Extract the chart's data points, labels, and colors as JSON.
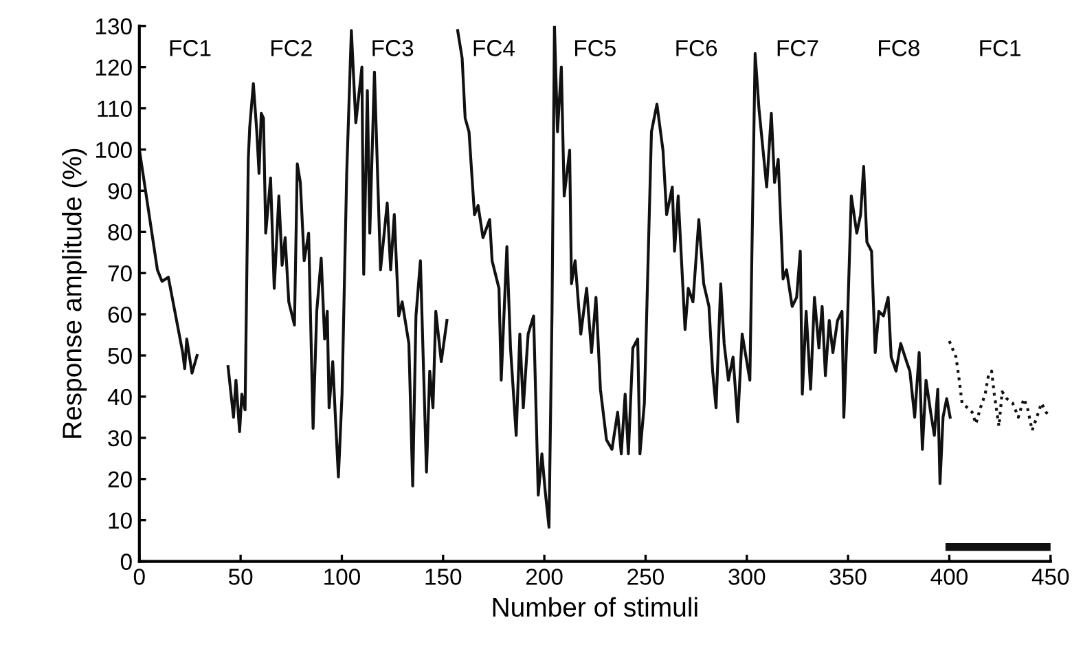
{
  "chart_data": {
    "type": "line",
    "xlabel": "Number of stimuli",
    "ylabel": "Response amplitude (%)",
    "xlim": [
      0,
      450
    ],
    "ylim": [
      0,
      130
    ],
    "xticks": [
      0,
      50,
      100,
      150,
      200,
      250,
      300,
      350,
      400,
      450
    ],
    "yticks": [
      0,
      10,
      20,
      30,
      40,
      50,
      60,
      70,
      80,
      90,
      100,
      110,
      120,
      130
    ],
    "grid": false,
    "legend": false,
    "marker": "none",
    "series": [
      {
        "color": "#111111",
        "line_style": "solid",
        "x": [
          0,
          8.9,
          11.2,
          14.3,
          21.4,
          22.4,
          23.4,
          26,
          28.5
        ],
        "values": [
          100,
          70.8,
          68,
          69,
          50.7,
          46.8,
          54,
          45.7,
          50
        ]
      },
      {
        "color": "#111111",
        "line_style": "solid",
        "x": [
          43.8,
          46.5,
          47.7,
          49.5,
          50.6,
          52.2,
          53.8,
          54.5,
          56.3,
          58,
          59.1,
          60.2,
          61.3,
          62.4,
          64.8,
          66.6,
          68.9,
          70.5,
          72,
          73.8,
          76.6,
          78,
          79.5,
          81.4,
          83.6,
          85.8,
          87.6,
          89.8,
          91.5,
          92.8,
          93.7,
          95.5,
          96.7,
          98.3,
          100.1,
          102.4,
          104.7,
          106.9,
          109.9,
          110.8,
          112.6,
          113.8,
          116.1,
          119.1,
          122.4,
          124.1,
          125.9,
          128.1,
          129.8,
          133.1,
          135,
          136.6,
          138.8,
          141.8,
          143.4,
          145,
          146.4,
          149.1,
          151.9
        ],
        "values": [
          47.3,
          35,
          44,
          31.5,
          40.6,
          36.8,
          97.6,
          105.4,
          116,
          104.3,
          94.2,
          108.8,
          107.6,
          79.7,
          93.1,
          66.3,
          88.7,
          71.9,
          78.6,
          63,
          57.4,
          96.5,
          92,
          73,
          79.7,
          32.3,
          60.7,
          73.6,
          54,
          60.7,
          37.3,
          48.5,
          36.2,
          20.5,
          40.6,
          94.2,
          128.9,
          106.5,
          120,
          69.7,
          114.3,
          79.7,
          118.8,
          70.8,
          87,
          70.8,
          84.2,
          59.6,
          63,
          52.9,
          18.3,
          59.6,
          73,
          21.7,
          46.2,
          37.3,
          60.7,
          48.5,
          58.5
        ]
      },
      {
        "color": "#111111",
        "line_style": "solid",
        "x": [
          157.2,
          159.4,
          160.9,
          162.8,
          165.5,
          167.3,
          169.7,
          173,
          174.2,
          177.6,
          178.7,
          181.5,
          183.3,
          186.1,
          187.9,
          189.6,
          192,
          194.7,
          197,
          198.8,
          200.4,
          202.3,
          203.8,
          205,
          206.5,
          208.4,
          209.8,
          212.5,
          213.4,
          215.2,
          218,
          220.9,
          223.3,
          225.5,
          227.7,
          230.7,
          233.4,
          236.2,
          238,
          239.9,
          241.5,
          243.7,
          246.1,
          247.2,
          249.4,
          252.9,
          255.6,
          258.6,
          260.4,
          263.2,
          264.3,
          266.1,
          269.5,
          271.1,
          273.4,
          276.3,
          278.7,
          281.3,
          283.1,
          284.8,
          287.1,
          288.8,
          290.9,
          293.2,
          295.5,
          297.7,
          301.5,
          304.1,
          306,
          309.8,
          312.1,
          313.7,
          315.5,
          317.9,
          319.6,
          322.4,
          324.6,
          326.4,
          327.4,
          329.3,
          331.5,
          333.4,
          335.6,
          337.2,
          338.8,
          340.7,
          342.5,
          344.8,
          347,
          347.9,
          349.8,
          351.6,
          354.3,
          356.2,
          357.7,
          359.3,
          361.6,
          363.4,
          365.2,
          367.5,
          369.8,
          371.3,
          373.7,
          376,
          378.9,
          380.5,
          382.9,
          385.1,
          386.7,
          388.5,
          390.8,
          392.6,
          394.3,
          395.4,
          396.9,
          398.7,
          400.4
        ],
        "values": [
          128.9,
          122.2,
          107.6,
          104.3,
          84.2,
          86.4,
          78.6,
          83,
          73,
          66.3,
          44,
          76.4,
          51.8,
          30.6,
          55.2,
          37.3,
          55.2,
          59.6,
          16.1,
          26.1,
          17.2,
          8.3,
          60.7,
          130,
          104.3,
          120,
          88.7,
          99.8,
          67.4,
          73,
          55.2,
          66.3,
          50.7,
          64.1,
          41.8,
          29.5,
          27.2,
          36.2,
          26.1,
          40.6,
          26.1,
          51.8,
          54,
          26.1,
          38.4,
          104.3,
          111,
          99.8,
          84.2,
          90.9,
          75.3,
          88.7,
          56.3,
          66.3,
          63,
          83,
          67.4,
          61.9,
          46.2,
          37.3,
          67.4,
          52.9,
          44,
          49.6,
          33.9,
          55.2,
          44,
          123.3,
          109.9,
          90.9,
          108.8,
          92,
          97.6,
          68.6,
          70.8,
          61.9,
          64.1,
          75.3,
          40.6,
          60.7,
          41.8,
          64.1,
          51.8,
          61.9,
          45.1,
          58.5,
          50.7,
          58.5,
          60.7,
          35,
          59.6,
          88.7,
          79.7,
          84.2,
          95.9,
          77.5,
          75.3,
          50.7,
          60.7,
          59.6,
          64.1,
          49.6,
          46.2,
          52.9,
          48.5,
          46.2,
          35,
          50.7,
          27.2,
          44,
          36.2,
          30.6,
          41.8,
          18.9,
          35,
          39.5,
          35
        ]
      },
      {
        "color": "#111111",
        "line_style": "dotted",
        "x": [
          400,
          403.3,
          404.9,
          406.3,
          409,
          411.3,
          413.1,
          415.4,
          417.7,
          419.3,
          420.9,
          422.2,
          424.5,
          426.1,
          428.4,
          431.3,
          434.1,
          436.8,
          438.6,
          440.9,
          443.2,
          445.5,
          447.8,
          450
        ],
        "values": [
          53.5,
          49.6,
          44,
          38.4,
          37.3,
          36.2,
          33.4,
          37.3,
          40.6,
          45.1,
          46.2,
          40.6,
          32.8,
          41.2,
          39.5,
          38.4,
          35,
          39.5,
          37.3,
          31.8,
          35,
          38.4,
          36.2,
          35
        ]
      },
      {
        "color": "#111111",
        "line_style": "solid",
        "x": [
          400,
          450
        ],
        "values": [
          3.5,
          3.5
        ]
      }
    ],
    "annotations": [
      "FC1",
      "FC2",
      "FC3",
      "FC4",
      "FC5",
      "FC6",
      "FC7",
      "FC8",
      "FC1"
    ]
  }
}
